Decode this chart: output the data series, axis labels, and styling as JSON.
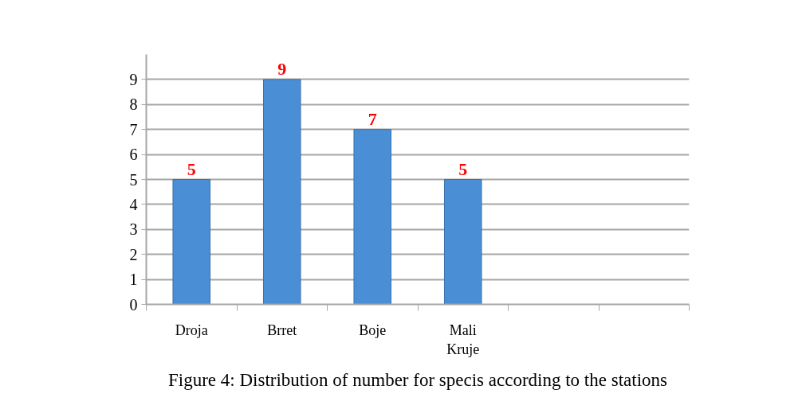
{
  "chart_data": {
    "type": "bar",
    "title": "Figure 4: Distribution of number for specis according to the stations",
    "categories": [
      "Droja",
      "Brret",
      "Boje",
      "Mali Kruje",
      null,
      null
    ],
    "values": [
      5,
      9,
      7,
      5,
      null,
      null
    ],
    "color": "#4a8fd6",
    "ylim": [
      0,
      10
    ],
    "yticks": [
      0,
      1,
      2,
      3,
      4,
      5,
      6,
      7,
      8,
      9
    ],
    "grid": "y",
    "data_labels": true
  }
}
